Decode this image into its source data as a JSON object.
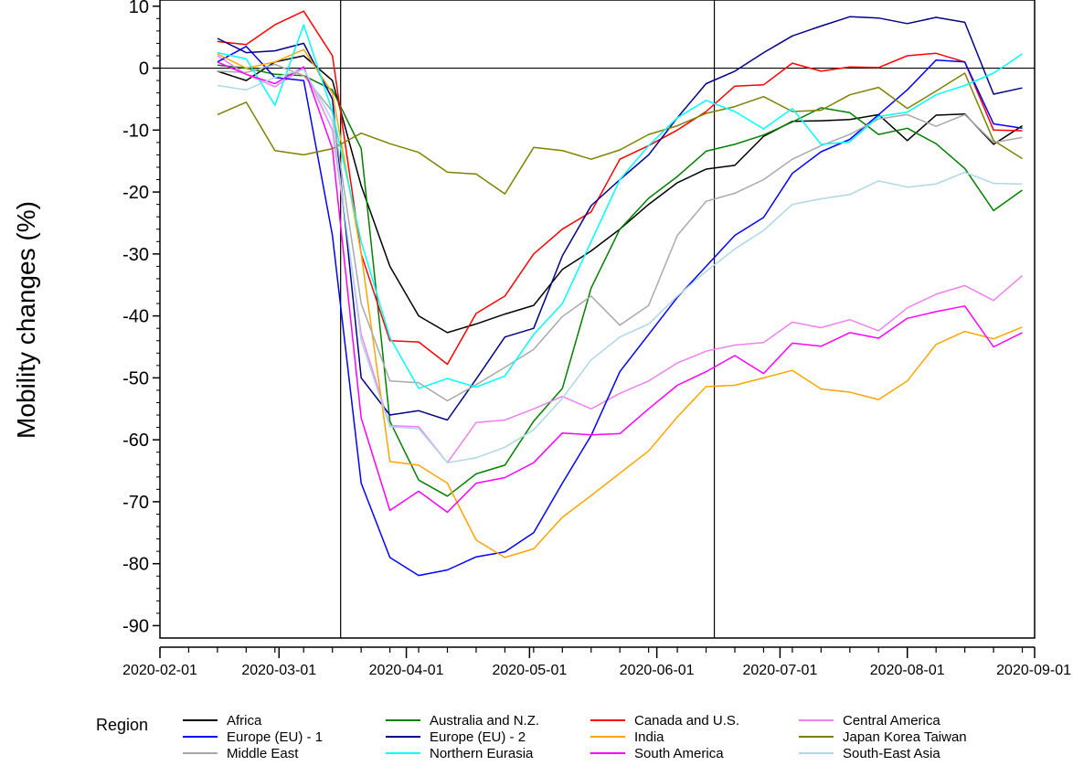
{
  "chart_data": {
    "type": "line",
    "title": "",
    "xlabel": "",
    "ylabel": "Mobility changes (%)",
    "ylim": [
      -92,
      11
    ],
    "xlim": [
      "2020-02-01",
      "2020-09-01"
    ],
    "y_ticks": [
      10,
      0,
      -10,
      -20,
      -30,
      -40,
      -50,
      -60,
      -70,
      -80,
      -90
    ],
    "y_tick_labels": [
      "10",
      "0",
      "-10",
      "-20",
      "-30",
      "-40",
      "-50",
      "-60",
      "-70",
      "-80",
      "-90"
    ],
    "x_ticks": [
      "2020-02-01",
      "2020-03-01",
      "2020-04-01",
      "2020-05-01",
      "2020-06-01",
      "2020-07-01",
      "2020-08-01",
      "2020-09-01"
    ],
    "reference_lines": {
      "horizontal_y": 0,
      "vertical_dates": [
        "2020-03-16",
        "2020-06-15"
      ]
    },
    "grid": false,
    "legend": {
      "title": "Region",
      "position": "bottom"
    },
    "x": [
      "2020-02-15",
      "2020-02-22",
      "2020-02-29",
      "2020-03-07",
      "2020-03-14",
      "2020-03-21",
      "2020-03-28",
      "2020-04-04",
      "2020-04-11",
      "2020-04-18",
      "2020-04-25",
      "2020-05-02",
      "2020-05-09",
      "2020-05-16",
      "2020-05-23",
      "2020-05-30",
      "2020-06-06",
      "2020-06-13",
      "2020-06-20",
      "2020-06-27",
      "2020-07-04",
      "2020-07-11",
      "2020-07-18",
      "2020-07-25",
      "2020-08-01",
      "2020-08-08",
      "2020-08-15",
      "2020-08-22",
      "2020-08-29"
    ],
    "series": [
      {
        "name": "Africa",
        "color": "#000000",
        "values": [
          -0.5,
          -2,
          1,
          2,
          -2,
          -19,
          -32,
          -40,
          -42.7,
          -41.3,
          -39.7,
          -38.3,
          -32.5,
          -29.5,
          -26,
          -22,
          -18.5,
          -16.3,
          -15.7,
          -11,
          -8.6,
          -8.5,
          -8.3,
          -7.5,
          -11.7,
          -7.6,
          -7.4,
          -12.3,
          -9.3
        ]
      },
      {
        "name": "Australia and N.Z.",
        "color": "#008000",
        "values": [
          0.5,
          0,
          -1,
          -1.2,
          -3.5,
          -13,
          -57,
          -66.5,
          -69.1,
          -65.5,
          -64.1,
          -57,
          -51.7,
          -35.5,
          -26,
          -21,
          -17.5,
          -13.4,
          -12.3,
          -10.8,
          -8.7,
          -6.4,
          -7.2,
          -10.7,
          -9.7,
          -12.2,
          -16.2,
          -23,
          -19.7
        ]
      },
      {
        "name": "Canada and U.S.",
        "color": "#ff0000",
        "values": [
          4.3,
          3.8,
          7,
          9.2,
          2,
          -30,
          -44,
          -44.2,
          -47.8,
          -39.6,
          -36.8,
          -30,
          -26,
          -23.2,
          -14.7,
          -12.5,
          -10,
          -7,
          -2.9,
          -2.7,
          0.8,
          -0.5,
          0.2,
          0.1,
          2,
          2.4,
          1,
          -10,
          -10.1
        ]
      },
      {
        "name": "Central America",
        "color": "#ee82ee",
        "values": [
          2,
          -1,
          -3,
          0,
          -10,
          -43,
          -57.7,
          -57.9,
          -63.7,
          -57.2,
          -56.8,
          -55,
          -53,
          -55,
          -52.5,
          -50.5,
          -47.6,
          -45.7,
          -44.7,
          -44.3,
          -41,
          -41.9,
          -40.6,
          -42.4,
          -38.7,
          -36.5,
          -35.1,
          -37.5,
          -33.5
        ]
      },
      {
        "name": "Europe (EU) - 1",
        "color": "#0000ff",
        "values": [
          1,
          3.5,
          -1.5,
          -2,
          -27,
          -67,
          -79,
          -81.9,
          -81,
          -78.9,
          -78.1,
          -75,
          -67,
          -59.3,
          -49,
          -43,
          -37,
          -32,
          -27,
          -24.1,
          -17,
          -13.5,
          -11.5,
          -7.5,
          -3.5,
          1.3,
          1,
          -9,
          -9.7
        ]
      },
      {
        "name": "Europe (EU) - 2",
        "color": "#00008b",
        "values": [
          4.8,
          2.5,
          2.8,
          4,
          -5,
          -50,
          -56,
          -55.3,
          -56.8,
          -50.2,
          -43.4,
          -42,
          -30.3,
          -22.2,
          -18,
          -14,
          -8,
          -2.5,
          -0.5,
          2.5,
          5.2,
          6.8,
          8.3,
          8.1,
          7.2,
          8.2,
          7.4,
          -4.2,
          -3.2
        ]
      },
      {
        "name": "India",
        "color": "#ffa500",
        "values": [
          2.3,
          0,
          1,
          3,
          -4,
          -30,
          -63.5,
          -64.1,
          -67,
          -76.2,
          -79,
          -77.6,
          -72.5,
          -69,
          -65.4,
          -61.8,
          -56.3,
          -51.4,
          -51.2,
          -50,
          -48.8,
          -51.8,
          -52.3,
          -53.5,
          -50.5,
          -44.6,
          -42.5,
          -43.7,
          -41.8
        ]
      },
      {
        "name": "Japan Korea Taiwan",
        "color": "#808000",
        "values": [
          -7.5,
          -5.5,
          -13.3,
          -14,
          -13,
          -10.5,
          -12.2,
          -13.6,
          -16.8,
          -17.1,
          -20.3,
          -12.8,
          -13.3,
          -14.7,
          -13.2,
          -10.7,
          -9.3,
          -7.3,
          -6.2,
          -4.6,
          -7,
          -6.8,
          -4.3,
          -3.1,
          -6.5,
          -3.7,
          -0.8,
          -11.7,
          -14.6
        ]
      },
      {
        "name": "Middle East",
        "color": "#a9a9a9",
        "values": [
          -0.5,
          -0.7,
          0.6,
          -1.2,
          -7,
          -38,
          -50.5,
          -50.8,
          -53.7,
          -51.1,
          -48.3,
          -45.4,
          -40.1,
          -36.8,
          -41.5,
          -38.3,
          -27,
          -21.5,
          -20.2,
          -18,
          -14.7,
          -12.5,
          -10.7,
          -8.2,
          -7.5,
          -9.4,
          -7.5,
          -12,
          -11.2
        ]
      },
      {
        "name": "Northern Eurasia",
        "color": "#00ffff",
        "values": [
          2.5,
          1.5,
          -6,
          7,
          -7,
          -28,
          -43.5,
          -51.7,
          -50.1,
          -51.5,
          -49.7,
          -43,
          -38,
          -28,
          -18,
          -12.5,
          -8,
          -5.2,
          -7,
          -9.8,
          -6.5,
          -12.3,
          -11.9,
          -7.8,
          -7.1,
          -4.3,
          -2.8,
          -0.8,
          2.3
        ]
      },
      {
        "name": "South America",
        "color": "#ff00ff",
        "values": [
          1,
          -1,
          -2.5,
          0.2,
          -13,
          -56.5,
          -71.4,
          -68.3,
          -71.7,
          -67,
          -66.1,
          -63.7,
          -58.9,
          -59.2,
          -59,
          -55,
          -51.2,
          -49,
          -46.4,
          -49.3,
          -44.4,
          -44.9,
          -42.7,
          -43.6,
          -40.4,
          -39.3,
          -38.4,
          -45,
          -42.7
        ]
      },
      {
        "name": "South-East Asia",
        "color": "#add8e6",
        "values": [
          -2.8,
          -3.5,
          -1.5,
          -0.2,
          -8.5,
          -44,
          -57.9,
          -58.2,
          -63.7,
          -62.9,
          -61.2,
          -58.4,
          -53.3,
          -47.1,
          -43.4,
          -41.3,
          -36.8,
          -32.8,
          -29.2,
          -26.2,
          -22,
          -21.1,
          -20.4,
          -18.2,
          -19.2,
          -18.7,
          -16.8,
          -18.6,
          -18.7
        ]
      }
    ]
  }
}
